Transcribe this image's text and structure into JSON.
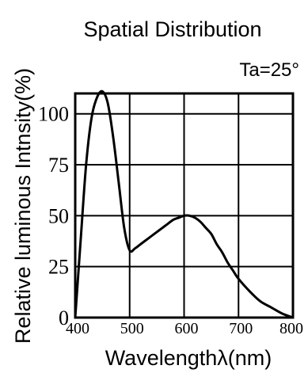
{
  "chart_data": {
    "type": "line",
    "title": "Spatial Distribution",
    "annotation": "Ta=25°",
    "xlabel": "Wavelengthλ(nm)",
    "ylabel": "Relative luminous Intnsity(%)",
    "xlim": [
      400,
      800
    ],
    "ylim": [
      0,
      110
    ],
    "x_ticks": [
      400,
      500,
      600,
      700,
      800
    ],
    "y_ticks": [
      0,
      25,
      50,
      75,
      100
    ],
    "grid": true,
    "series": [
      {
        "x": [
          400,
          410,
          420,
          430,
          440,
          450,
          460,
          470,
          480,
          490,
          500,
          510,
          520,
          530,
          540,
          550,
          560,
          570,
          580,
          590,
          600,
          610,
          620,
          630,
          640,
          650,
          660,
          670,
          680,
          690,
          700,
          720,
          740,
          760,
          780,
          800
        ],
        "values": [
          0,
          38,
          75,
          98,
          108,
          111,
          105,
          88,
          66,
          44,
          33,
          34,
          36,
          38,
          40,
          42,
          44,
          46,
          48,
          49,
          50,
          50,
          49,
          47,
          44,
          41,
          36,
          32,
          27,
          23,
          19,
          13,
          8,
          5,
          2,
          0
        ]
      }
    ]
  }
}
